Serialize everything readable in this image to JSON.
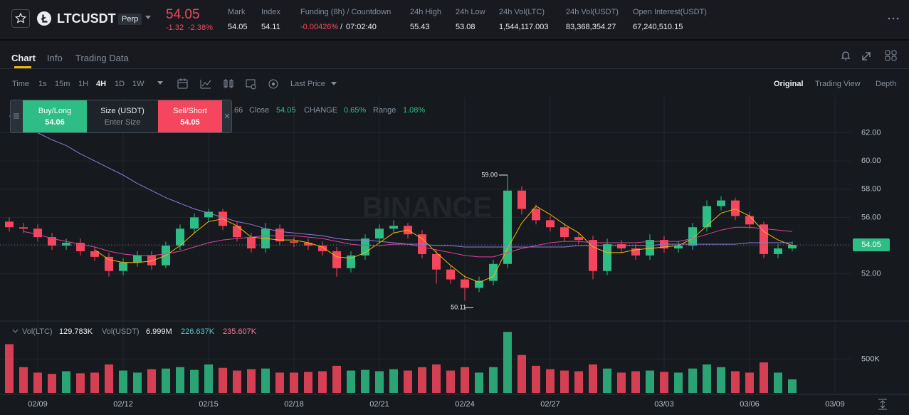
{
  "header": {
    "symbol": "LTCUSDT",
    "badge": "Perp",
    "price": "54.05",
    "change": "-1.32",
    "change_pct": "-2.38%",
    "stats": [
      {
        "label": "Mark",
        "value": "54.05"
      },
      {
        "label": "Index",
        "value": "54.11"
      },
      {
        "label": "Funding (8h) / Countdown",
        "value": "-0.00426%",
        "separator": "/",
        "countdown": "07:02:40"
      },
      {
        "label": "24h High",
        "value": "55.43"
      },
      {
        "label": "24h Low",
        "value": "53.08"
      },
      {
        "label": "24h Vol(LTC)",
        "value": "1,544,117.003"
      },
      {
        "label": "24h Vol(USDT)",
        "value": "83,368,354.27"
      },
      {
        "label": "Open Interest(USDT)",
        "value": "67,240,510.15"
      }
    ]
  },
  "tabs": [
    "Chart",
    "Info",
    "Trading Data"
  ],
  "toolbar": {
    "intervals": [
      "Time",
      "1s",
      "15m",
      "1H",
      "4H",
      "1D",
      "1W"
    ],
    "price_type": "Last Price",
    "views": [
      "Original",
      "Trading View",
      "Depth"
    ]
  },
  "order_panel": {
    "buy_label": "Buy/Long",
    "buy_price": "54.06",
    "size_label": "Size (USDT)",
    "size_placeholder": "Enter Size",
    "sell_label": "Sell/Short",
    "sell_price": "54.05"
  },
  "legend": {
    "fragment": ".66",
    "items": [
      {
        "label": "Close",
        "value": "54.05"
      },
      {
        "label": "CHANGE",
        "value": "0.65%"
      },
      {
        "label": "Range",
        "value": "1.08%"
      }
    ]
  },
  "volume_legend": {
    "label_ltc": "Vol(LTC)",
    "value_ltc": "129.783K",
    "label_usdt": "Vol(USDT)",
    "value_usdt": "6.999M",
    "ma_1": "226.637K",
    "ma_2": "235.607K"
  },
  "chart_data": {
    "type": "candlestick",
    "watermark": "BINANCE",
    "colors": {
      "up": "#2ebd85",
      "down": "#f6465d"
    },
    "open": [
      55.7,
      55.3,
      55.2,
      54.6,
      54.0,
      54.2,
      53.6,
      53.2,
      52.2,
      52.8,
      53.3,
      52.6,
      54.0,
      55.2,
      56.0,
      56.4,
      55.4,
      54.6,
      53.8,
      55.2,
      54.3,
      54.2,
      54.0,
      53.6,
      52.4,
      53.3,
      54.5,
      55.2,
      55.4,
      54.8,
      53.4,
      52.3,
      51.6,
      51.0,
      51.5,
      52.7,
      57.9,
      56.6,
      55.8,
      55.3,
      54.6,
      54.4,
      52.2,
      54.1,
      53.8,
      53.3,
      54.4,
      53.8,
      54.0,
      55.3,
      56.8,
      57.2,
      56.1,
      55.5,
      53.4,
      53.8
    ],
    "high": [
      56.0,
      55.6,
      55.5,
      54.9,
      54.5,
      54.5,
      53.9,
      53.5,
      53.1,
      53.6,
      53.6,
      54.3,
      55.5,
      56.3,
      56.6,
      56.6,
      55.7,
      54.9,
      55.6,
      55.5,
      54.6,
      54.5,
      54.3,
      53.9,
      53.6,
      54.8,
      55.5,
      55.8,
      55.6,
      55.1,
      53.7,
      52.6,
      51.9,
      51.8,
      53.0,
      59.0,
      58.2,
      56.9,
      56.1,
      55.6,
      54.9,
      54.7,
      54.5,
      54.4,
      54.1,
      54.8,
      54.7,
      54.3,
      55.6,
      57.2,
      57.5,
      57.4,
      56.4,
      55.7,
      54.1,
      54.3
    ],
    "low": [
      55.0,
      54.9,
      54.3,
      53.7,
      53.7,
      53.3,
      52.9,
      51.8,
      51.9,
      52.5,
      52.3,
      52.4,
      53.7,
      54.9,
      55.7,
      55.1,
      54.3,
      53.5,
      53.5,
      54.0,
      53.9,
      53.7,
      53.3,
      51.8,
      52.1,
      53.0,
      54.2,
      54.9,
      54.5,
      53.1,
      51.3,
      51.3,
      50.11,
      50.7,
      51.2,
      52.4,
      56.2,
      55.5,
      55.0,
      54.3,
      54.1,
      51.6,
      51.9,
      53.5,
      53.0,
      53.0,
      53.5,
      53.5,
      53.7,
      55.0,
      56.5,
      55.8,
      55.2,
      53.1,
      53.1,
      53.6
    ],
    "close": [
      55.3,
      55.2,
      54.6,
      54.0,
      54.2,
      53.6,
      53.2,
      52.2,
      52.8,
      53.3,
      52.6,
      54.0,
      55.2,
      56.0,
      56.4,
      55.4,
      54.6,
      53.8,
      55.2,
      54.3,
      54.2,
      54.0,
      53.6,
      52.4,
      53.3,
      54.5,
      55.2,
      55.4,
      54.8,
      53.4,
      52.3,
      51.6,
      51.0,
      51.5,
      52.7,
      57.9,
      56.6,
      55.8,
      55.3,
      54.6,
      54.4,
      52.2,
      54.1,
      53.8,
      53.3,
      54.4,
      53.8,
      54.0,
      55.3,
      56.8,
      57.2,
      56.1,
      55.5,
      53.4,
      53.8,
      54.05
    ],
    "ma": [
      {
        "color": "#f0b90b",
        "values": [
          null,
          null,
          null,
          null,
          null,
          null,
          53.7,
          53.0,
          52.8,
          52.8,
          52.9,
          53.3,
          54.0,
          54.9,
          55.7,
          55.9,
          55.4,
          54.6,
          54.5,
          54.4,
          54.4,
          54.2,
          53.9,
          53.2,
          53.1,
          53.5,
          54.2,
          54.9,
          55.1,
          54.5,
          53.5,
          52.6,
          51.8,
          51.4,
          51.8,
          53.8,
          55.6,
          56.8,
          56.2,
          55.5,
          54.9,
          53.9,
          53.5,
          53.5,
          53.7,
          53.8,
          53.9,
          54.0,
          54.5,
          55.4,
          56.3,
          56.6,
          56.1,
          55.0,
          54.4,
          54.0
        ]
      },
      {
        "color": "#d6459b",
        "values": [
          null,
          55.0,
          54.8,
          54.5,
          54.3,
          54.1,
          53.9,
          53.6,
          53.4,
          53.3,
          53.3,
          53.4,
          53.6,
          53.9,
          54.2,
          54.4,
          54.5,
          54.6,
          54.7,
          54.7,
          54.7,
          54.6,
          54.5,
          54.3,
          54.1,
          54.0,
          54.0,
          54.1,
          54.1,
          53.9,
          53.7,
          53.5,
          53.3,
          53.2,
          53.2,
          53.5,
          53.8,
          54.0,
          54.2,
          54.3,
          54.3,
          54.2,
          54.2,
          54.2,
          54.2,
          54.3,
          54.3,
          54.3,
          54.5,
          54.8,
          55.1,
          55.3,
          55.3,
          55.2,
          55.1,
          55.0
        ]
      },
      {
        "color": "#8e7ad9",
        "values": [
          63.2,
          62.6,
          62.0,
          61.5,
          61.1,
          60.5,
          60.0,
          59.5,
          59.0,
          58.4,
          57.9,
          57.4,
          57.0,
          56.6,
          56.3,
          56.0,
          55.7,
          55.5,
          55.2,
          55.0,
          54.9,
          54.8,
          54.7,
          54.5,
          54.4,
          54.4,
          54.3,
          54.2,
          54.1,
          54.1,
          54.0,
          54.0,
          53.9,
          53.9,
          53.9,
          53.9,
          53.9,
          53.9,
          53.9,
          53.9,
          54.0,
          54.0,
          54.0,
          54.0,
          54.0,
          54.0,
          54.1,
          54.1,
          54.1,
          54.1,
          54.1,
          54.1,
          54.2,
          54.2,
          54.2,
          54.2
        ]
      }
    ],
    "high_label": "59.00",
    "low_label": "50.11",
    "ylim": [
      48.7,
      64.5
    ],
    "yticks": [
      {
        "value": 52,
        "label": "52.00"
      },
      {
        "value": 54,
        "label": "54.00"
      },
      {
        "value": 56,
        "label": "56.00"
      },
      {
        "value": 58,
        "label": "58.00"
      },
      {
        "value": 60,
        "label": "60.00"
      },
      {
        "value": 62,
        "label": "62.00"
      }
    ],
    "xlim": [
      -0.65,
      59.1
    ],
    "xticks": [
      {
        "value": 2,
        "label": "02/09"
      },
      {
        "value": 8,
        "label": "02/12"
      },
      {
        "value": 14,
        "label": "02/15"
      },
      {
        "value": 20,
        "label": "02/18"
      },
      {
        "value": 26,
        "label": "02/21"
      },
      {
        "value": 32,
        "label": "02/24"
      },
      {
        "value": 38,
        "label": "02/27"
      },
      {
        "value": 46,
        "label": "03/03"
      },
      {
        "value": 52,
        "label": "03/06"
      },
      {
        "value": 58,
        "label": "03/09"
      }
    ],
    "grid": true,
    "volume": {
      "values": [
        720000,
        380000,
        300000,
        280000,
        320000,
        290000,
        300000,
        420000,
        330000,
        300000,
        350000,
        360000,
        380000,
        340000,
        420000,
        370000,
        330000,
        350000,
        360000,
        300000,
        300000,
        310000,
        320000,
        400000,
        330000,
        340000,
        320000,
        350000,
        330000,
        380000,
        420000,
        330000,
        380000,
        300000,
        380000,
        900000,
        560000,
        400000,
        350000,
        330000,
        320000,
        420000,
        360000,
        300000,
        320000,
        330000,
        310000,
        300000,
        360000,
        420000,
        380000,
        320000,
        300000,
        450000,
        300000,
        200000
      ],
      "ylim": [
        0,
        1050000
      ],
      "yticks": [
        {
          "value": 500000,
          "label": "500K"
        }
      ]
    }
  }
}
